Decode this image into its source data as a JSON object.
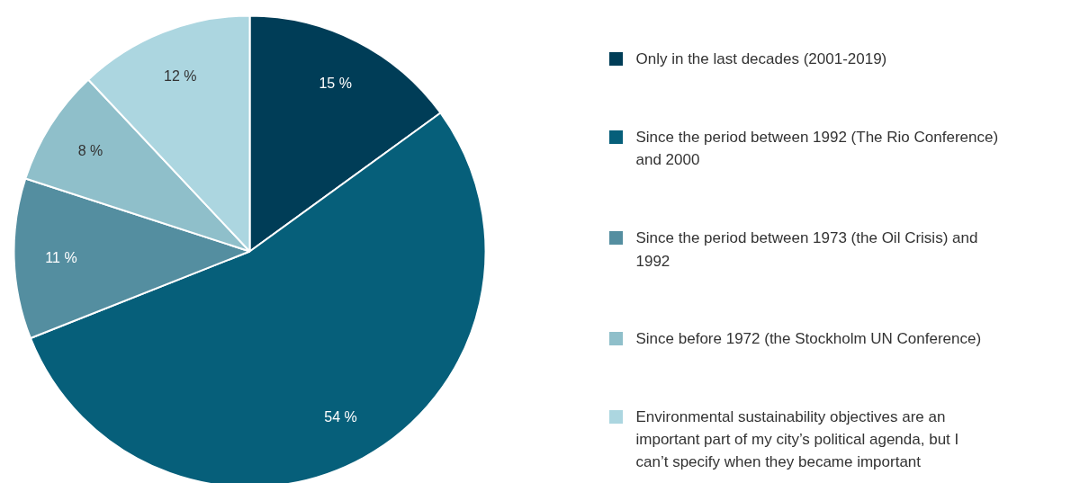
{
  "chart_data": {
    "type": "pie",
    "categories": [
      "Only in the last decades (2001-2019)",
      "Since the period between 1992 (The Rio Conference) and 2000",
      "Since the period between 1973 (the Oil Crisis) and 1992",
      "Since before 1972 (the Stockholm UN Conference)",
      "Environmental sustainability objectives are an important part of my city’s political agenda, but I can’t specify when they became important"
    ],
    "values": [
      15,
      54,
      11,
      8,
      12
    ],
    "value_labels": [
      "15 %",
      "54 %",
      "11 %",
      "8 %",
      "12 %"
    ],
    "colors": [
      "#003d57",
      "#065f7a",
      "#548ea0",
      "#8fbfca",
      "#acd6e0"
    ],
    "legend": "right"
  }
}
